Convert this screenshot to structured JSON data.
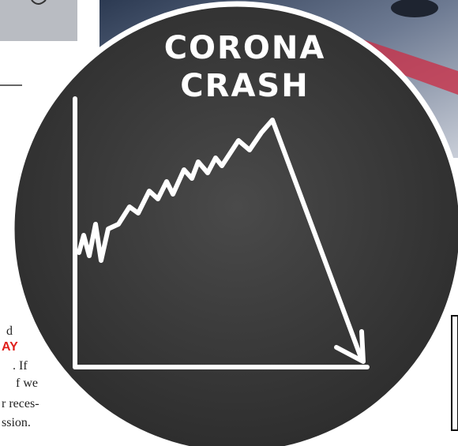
{
  "headline": {
    "line1": "CORONA",
    "line2": "CRASH"
  },
  "article_fragments": [
    "d",
    "AY",
    ". If",
    "f we",
    "r reces-",
    "ssion."
  ]
}
